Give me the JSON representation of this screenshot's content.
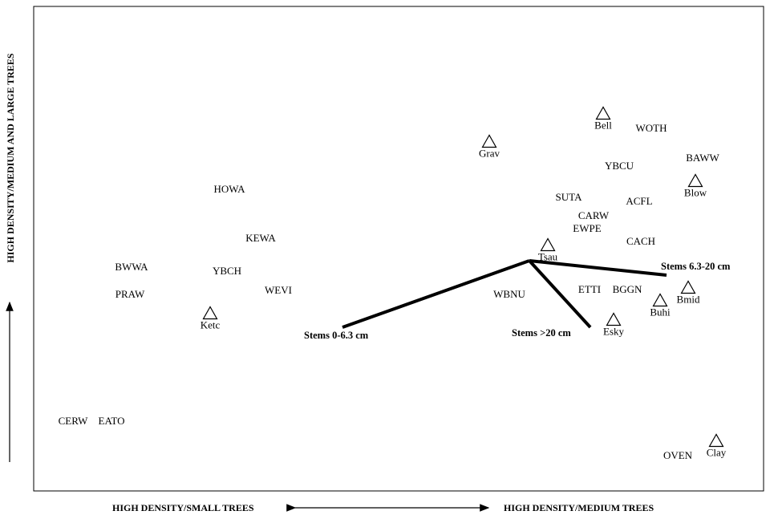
{
  "chart_data": {
    "type": "scatter",
    "title": "",
    "xlabel_left": "HIGH DENSITY/SMALL TREES",
    "xlabel_right": "HIGH DENSITY/MEDIUM TREES",
    "ylabel": "HIGH DENSITY/MEDIUM AND LARGE TREES",
    "species_points": [
      {
        "label": "BWWA",
        "x": 164,
        "y": 334
      },
      {
        "label": "PRAW",
        "x": 162,
        "y": 368
      },
      {
        "label": "HOWA",
        "x": 286,
        "y": 237
      },
      {
        "label": "KEWA",
        "x": 325,
        "y": 298
      },
      {
        "label": "YBCH",
        "x": 283,
        "y": 339
      },
      {
        "label": "WEVI",
        "x": 347,
        "y": 363
      },
      {
        "label": "CERW",
        "x": 91,
        "y": 526
      },
      {
        "label": "EATO",
        "x": 139,
        "y": 526
      },
      {
        "label": "WOTH",
        "x": 812,
        "y": 161
      },
      {
        "label": "BAWW",
        "x": 876,
        "y": 198
      },
      {
        "label": "YBCU",
        "x": 772,
        "y": 208
      },
      {
        "label": "SUTA",
        "x": 709,
        "y": 247
      },
      {
        "label": "ACFL",
        "x": 797,
        "y": 252
      },
      {
        "label": "CARW",
        "x": 740,
        "y": 270
      },
      {
        "label": "EWPE",
        "x": 732,
        "y": 286
      },
      {
        "label": "CACH",
        "x": 799,
        "y": 302
      },
      {
        "label": "WBNU",
        "x": 635,
        "y": 368
      },
      {
        "label": "ETTI",
        "x": 735,
        "y": 362
      },
      {
        "label": "BGGN",
        "x": 782,
        "y": 362
      },
      {
        "label": "OVEN",
        "x": 845,
        "y": 569
      }
    ],
    "sites": [
      {
        "label": "Bell",
        "x": 752,
        "y": 141
      },
      {
        "label": "Grav",
        "x": 610,
        "y": 176
      },
      {
        "label": "Blow",
        "x": 867,
        "y": 225
      },
      {
        "label": "Tsau",
        "x": 683,
        "y": 305
      },
      {
        "label": "Ketc",
        "x": 262,
        "y": 390
      },
      {
        "label": "Bmid",
        "x": 858,
        "y": 358
      },
      {
        "label": "Buhi",
        "x": 823,
        "y": 374
      },
      {
        "label": "Esky",
        "x": 765,
        "y": 398
      },
      {
        "label": "Clay",
        "x": 893,
        "y": 549
      }
    ],
    "vectors": [
      {
        "label": "Stems 0-6.3 cm",
        "end": {
          "x": 427,
          "y": 408
        }
      },
      {
        "label": "Stems >20 cm",
        "end": {
          "x": 736,
          "y": 408
        }
      },
      {
        "label": "Stems 6.3-20 cm",
        "end": {
          "x": 831,
          "y": 343
        }
      }
    ],
    "vector_origin": {
      "x": 660,
      "y": 325
    },
    "xlim": [
      42,
      952
    ],
    "ylim": [
      612,
      8
    ]
  }
}
